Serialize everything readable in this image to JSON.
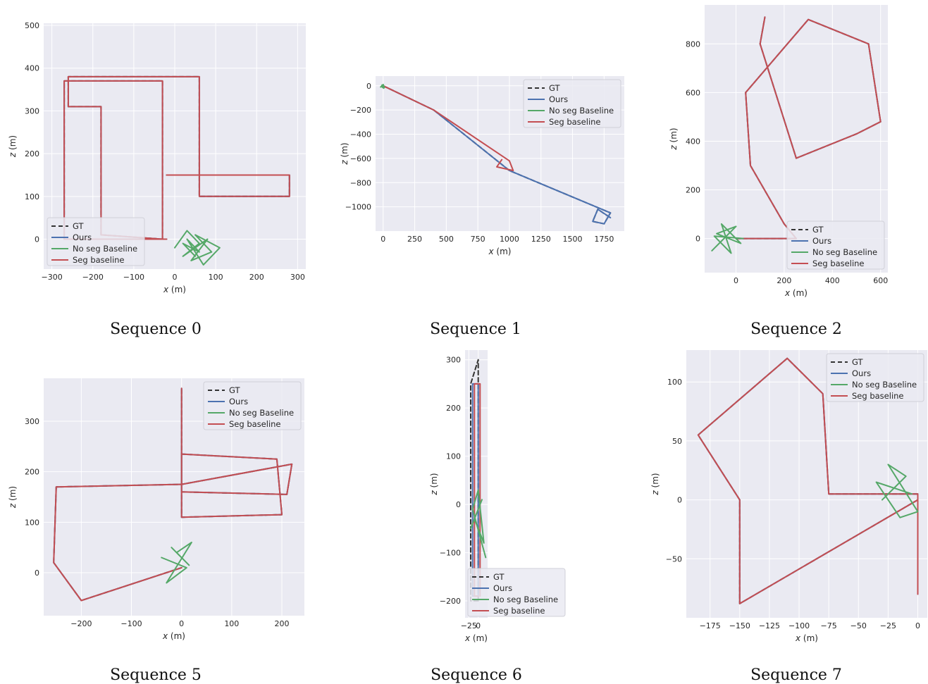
{
  "colors": {
    "panel_bg": "#eaeaf2",
    "grid": "#ffffff",
    "GT": "#333333",
    "Ours": "#4c72b0",
    "No seg Baseline": "#55a868",
    "Seg baseline": "#c44e52"
  },
  "chart_data": [
    {
      "type": "line",
      "caption": "Sequence 0",
      "xlabel_var": "x",
      "xlabel_unit": " (m)",
      "ylabel_var": "z",
      "ylabel_unit": " (m)",
      "xlim": [
        -320,
        320
      ],
      "ylim": [
        -70,
        505
      ],
      "xticks": [
        -300,
        -200,
        -100,
        0,
        100,
        200,
        300
      ],
      "yticks": [
        0,
        100,
        200,
        300,
        400,
        500
      ],
      "legend_position": "lower-left",
      "legend": [
        "GT",
        "Ours",
        "No seg Baseline",
        "Seg baseline"
      ],
      "series": [
        {
          "name": "GT",
          "style": "dashed",
          "x": [
            -20,
            -270,
            -270,
            -30,
            -30,
            -180,
            -180,
            -260,
            -260,
            -20,
            -20,
            60,
            60,
            280,
            280,
            -20
          ],
          "y": [
            0,
            0,
            370,
            370,
            0,
            10,
            310,
            310,
            380,
            380,
            380,
            380,
            100,
            100,
            150,
            150
          ]
        },
        {
          "name": "Ours",
          "style": "solid",
          "x": [
            -20,
            -270,
            -270,
            -30,
            -30,
            -180,
            -180,
            -260,
            -260,
            -20,
            -20,
            60,
            60,
            280,
            280,
            -20
          ],
          "y": [
            0,
            0,
            370,
            370,
            0,
            10,
            310,
            310,
            380,
            380,
            380,
            380,
            100,
            100,
            150,
            150
          ]
        },
        {
          "name": "No seg Baseline",
          "style": "solid",
          "x": [
            0,
            30,
            60,
            20,
            80,
            40,
            90,
            50,
            110,
            70,
            30,
            60,
            20,
            50
          ],
          "y": [
            -20,
            20,
            -10,
            -40,
            0,
            -50,
            -30,
            10,
            -20,
            -60,
            0,
            -30,
            -10,
            -40
          ]
        },
        {
          "name": "Seg baseline",
          "style": "solid",
          "x": [
            -20,
            -270,
            -270,
            -30,
            -30,
            -180,
            -180,
            -260,
            -260,
            -20,
            -20,
            60,
            60,
            280,
            280,
            -20
          ],
          "y": [
            0,
            0,
            370,
            370,
            0,
            10,
            310,
            310,
            380,
            380,
            380,
            380,
            100,
            100,
            150,
            150
          ]
        }
      ]
    },
    {
      "type": "line",
      "caption": "Sequence 1",
      "xlabel_var": "x",
      "xlabel_unit": " (m)",
      "ylabel_var": "z",
      "ylabel_unit": " (m)",
      "xlim": [
        -60,
        1910
      ],
      "ylim": [
        -1200,
        80
      ],
      "xticks": [
        0,
        250,
        500,
        750,
        1000,
        1250,
        1500,
        1750
      ],
      "yticks": [
        0,
        -200,
        -400,
        -600,
        -800,
        -1000
      ],
      "legend_position": "upper-right",
      "legend": [
        "GT",
        "Ours",
        "No seg Baseline",
        "Seg baseline"
      ],
      "series": [
        {
          "name": "GT",
          "style": "dashed",
          "x": [
            0,
            400,
            1000,
            1800,
            1750,
            1660,
            1700,
            1800
          ],
          "y": [
            0,
            -200,
            -700,
            -1050,
            -1140,
            -1120,
            -1020,
            -1090
          ]
        },
        {
          "name": "Ours",
          "style": "solid",
          "x": [
            0,
            400,
            1000,
            1800,
            1750,
            1660,
            1700,
            1800
          ],
          "y": [
            0,
            -200,
            -700,
            -1050,
            -1140,
            -1120,
            -1020,
            -1090
          ]
        },
        {
          "name": "No seg Baseline",
          "style": "solid",
          "x": [
            -20,
            0,
            10,
            -10,
            5,
            -15,
            0
          ],
          "y": [
            -10,
            10,
            -15,
            5,
            -20,
            -5,
            0
          ]
        },
        {
          "name": "Seg baseline",
          "style": "solid",
          "x": [
            0,
            400,
            1000,
            1030,
            900,
            940
          ],
          "y": [
            0,
            -200,
            -620,
            -700,
            -670,
            -610
          ]
        }
      ]
    },
    {
      "type": "line",
      "caption": "Sequence 2",
      "xlabel_var": "x",
      "xlabel_unit": " (m)",
      "ylabel_var": "z",
      "ylabel_unit": " (m)",
      "xlim": [
        -130,
        630
      ],
      "ylim": [
        -140,
        960
      ],
      "xticks": [
        0,
        200,
        400,
        600
      ],
      "yticks": [
        0,
        200,
        400,
        600,
        800
      ],
      "legend_position": "lower-right",
      "legend": [
        "GT",
        "Ours",
        "No seg Baseline",
        "Seg baseline"
      ],
      "series": [
        {
          "name": "GT",
          "style": "dashed",
          "x": [
            0,
            250,
            200,
            60,
            40,
            300,
            550,
            600,
            500,
            250,
            100,
            120
          ],
          "y": [
            0,
            0,
            60,
            300,
            600,
            900,
            800,
            480,
            430,
            330,
            800,
            910
          ]
        },
        {
          "name": "Ours",
          "style": "solid",
          "x": [
            0,
            250,
            200,
            60,
            40,
            300,
            550,
            600,
            500,
            250,
            100,
            120
          ],
          "y": [
            0,
            0,
            60,
            300,
            600,
            900,
            800,
            480,
            430,
            330,
            800,
            910
          ]
        },
        {
          "name": "No seg Baseline",
          "style": "solid",
          "x": [
            -100,
            0,
            -80,
            20,
            -60,
            -20,
            -90,
            30
          ],
          "y": [
            -50,
            50,
            20,
            -20,
            60,
            -60,
            10,
            0
          ]
        },
        {
          "name": "Seg baseline",
          "style": "solid",
          "x": [
            0,
            250,
            200,
            60,
            40,
            300,
            550,
            600,
            500,
            250,
            100,
            120
          ],
          "y": [
            0,
            0,
            60,
            300,
            600,
            900,
            800,
            480,
            430,
            330,
            800,
            910
          ]
        }
      ]
    },
    {
      "type": "line",
      "caption": "Sequence 5",
      "xlabel_var": "x",
      "xlabel_unit": " (m)",
      "ylabel_var": "z",
      "ylabel_unit": " (m)",
      "xlim": [
        -275,
        245
      ],
      "ylim": [
        -85,
        385
      ],
      "xticks": [
        -200,
        -100,
        0,
        100,
        200
      ],
      "yticks": [
        0,
        100,
        200,
        300
      ],
      "legend_position": "upper-right",
      "legend": [
        "GT",
        "Ours",
        "No seg Baseline",
        "Seg baseline"
      ],
      "series": [
        {
          "name": "GT",
          "style": "dashed",
          "x": [
            0,
            -200,
            -255,
            -250,
            0,
            220,
            210,
            0,
            0,
            190,
            200,
            0,
            0
          ],
          "y": [
            10,
            -55,
            20,
            170,
            175,
            215,
            155,
            160,
            235,
            225,
            115,
            110,
            365
          ]
        },
        {
          "name": "Ours",
          "style": "solid",
          "x": [
            0,
            -200,
            -255,
            -250,
            0,
            220,
            210,
            0,
            0,
            190,
            200,
            0,
            0
          ],
          "y": [
            10,
            -55,
            20,
            170,
            175,
            215,
            155,
            160,
            235,
            225,
            115,
            110,
            365
          ]
        },
        {
          "name": "No seg Baseline",
          "style": "solid",
          "x": [
            -40,
            10,
            -30,
            20,
            -10,
            15,
            -20
          ],
          "y": [
            30,
            10,
            -20,
            60,
            40,
            15,
            50
          ]
        },
        {
          "name": "Seg baseline",
          "style": "solid",
          "x": [
            0,
            -200,
            -255,
            -250,
            0,
            220,
            210,
            0,
            0,
            190,
            200,
            0,
            0
          ],
          "y": [
            10,
            -55,
            20,
            170,
            175,
            215,
            155,
            160,
            235,
            225,
            115,
            110,
            365
          ]
        }
      ]
    },
    {
      "type": "line",
      "caption": "Sequence 6",
      "xlabel_var": "x",
      "xlabel_unit": " (m)",
      "ylabel_var": "z",
      "ylabel_unit": " (m)",
      "xlim": [
        -35,
        25
      ],
      "ylim": [
        -235,
        320
      ],
      "xticks": [
        -25,
        0
      ],
      "yticks": [
        -200,
        -100,
        0,
        100,
        200,
        300
      ],
      "legend_position": "lower-right",
      "legend": [
        "GT",
        "Ours",
        "No seg Baseline",
        "Seg baseline"
      ],
      "series": [
        {
          "name": "GT",
          "style": "dashed",
          "x": [
            0,
            -20,
            -20,
            0,
            0
          ],
          "y": [
            -200,
            -200,
            250,
            300,
            -200
          ]
        },
        {
          "name": "Ours",
          "style": "solid",
          "x": [
            0,
            -15,
            -15,
            0,
            0
          ],
          "y": [
            -190,
            -190,
            250,
            250,
            -190
          ]
        },
        {
          "name": "No seg Baseline",
          "style": "solid",
          "x": [
            -20,
            10,
            -10,
            15,
            0,
            -15,
            20
          ],
          "y": [
            -50,
            10,
            -30,
            -80,
            30,
            -10,
            -110
          ]
        },
        {
          "name": "Seg baseline",
          "style": "solid",
          "x": [
            0,
            -10,
            -10,
            5,
            5
          ],
          "y": [
            -190,
            -190,
            250,
            250,
            -190
          ]
        }
      ]
    },
    {
      "type": "line",
      "caption": "Sequence 7",
      "xlabel_var": "x",
      "xlabel_unit": " (m)",
      "ylabel_var": "z",
      "ylabel_unit": " (m)",
      "xlim": [
        -195,
        8
      ],
      "ylim": [
        -100,
        127
      ],
      "xticks": [
        -175,
        -150,
        -125,
        -100,
        -75,
        -50,
        -25,
        0
      ],
      "yticks": [
        -50,
        0,
        50,
        100
      ],
      "legend_position": "upper-right",
      "legend": [
        "GT",
        "Ours",
        "No seg Baseline",
        "Seg baseline"
      ],
      "series": [
        {
          "name": "GT",
          "style": "dashed",
          "x": [
            0,
            -150,
            -150,
            -185,
            -110,
            -80,
            -75,
            0,
            0
          ],
          "y": [
            0,
            -88,
            0,
            55,
            120,
            90,
            5,
            5,
            -80
          ]
        },
        {
          "name": "Ours",
          "style": "solid",
          "x": [
            0,
            -150,
            -150,
            -185,
            -110,
            -80,
            -75,
            0,
            0
          ],
          "y": [
            0,
            -88,
            0,
            55,
            120,
            90,
            5,
            5,
            -80
          ]
        },
        {
          "name": "No seg Baseline",
          "style": "solid",
          "x": [
            -30,
            -10,
            -25,
            0,
            -15,
            -35,
            -5
          ],
          "y": [
            0,
            20,
            30,
            -10,
            -15,
            15,
            5
          ]
        },
        {
          "name": "Seg baseline",
          "style": "solid",
          "x": [
            0,
            -150,
            -150,
            -185,
            -110,
            -80,
            -75,
            0,
            0
          ],
          "y": [
            0,
            -88,
            0,
            55,
            120,
            90,
            5,
            5,
            -80
          ]
        }
      ]
    }
  ]
}
